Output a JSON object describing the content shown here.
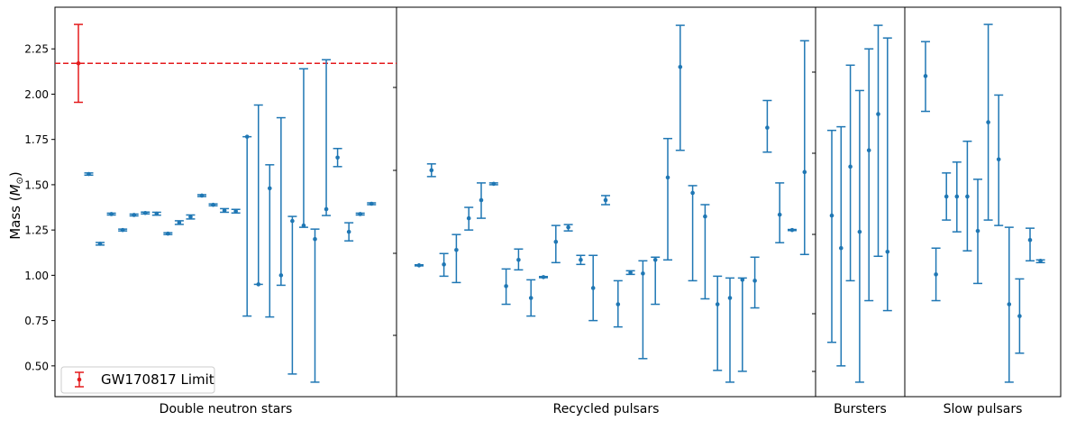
{
  "chart_data": {
    "type": "scatter",
    "ylabel": "Mass ($M_\\odot$)",
    "ylabel_plain": "Mass (",
    "ylabel_symbol": "M",
    "ylabel_sub": "⊙",
    "ylabel_close": ")",
    "ylim": [
      0.33,
      2.48
    ],
    "yticks": [
      "0.50",
      "0.75",
      "1.00",
      "1.25",
      "1.50",
      "1.75",
      "2.00",
      "2.25"
    ],
    "series_color": "#1f77b4",
    "limit_color": "#e41a1c",
    "limit": {
      "name": "GW170817 Limit",
      "value": 2.17,
      "lower": 1.955,
      "upper": 2.385
    },
    "panels": [
      {
        "label": "Double neutron stars",
        "points": [
          {
            "y": 1.559,
            "lo": 1.553,
            "hi": 1.565
          },
          {
            "y": 1.174,
            "lo": 1.167,
            "hi": 1.181
          },
          {
            "y": 1.338,
            "lo": 1.333,
            "hi": 1.343
          },
          {
            "y": 1.25,
            "lo": 1.245,
            "hi": 1.255
          },
          {
            "y": 1.333,
            "lo": 1.328,
            "hi": 1.338
          },
          {
            "y": 1.344,
            "lo": 1.339,
            "hi": 1.349
          },
          {
            "y": 1.34,
            "lo": 1.332,
            "hi": 1.348
          },
          {
            "y": 1.23,
            "lo": 1.225,
            "hi": 1.235
          },
          {
            "y": 1.291,
            "lo": 1.281,
            "hi": 1.301
          },
          {
            "y": 1.322,
            "lo": 1.311,
            "hi": 1.333
          },
          {
            "y": 1.44,
            "lo": 1.435,
            "hi": 1.445
          },
          {
            "y": 1.389,
            "lo": 1.384,
            "hi": 1.394
          },
          {
            "y": 1.358,
            "lo": 1.348,
            "hi": 1.368
          },
          {
            "y": 1.354,
            "lo": 1.344,
            "hi": 1.364
          },
          {
            "y": 1.765,
            "lo": 0.775,
            "hi": 1.765
          },
          {
            "y": 0.95,
            "lo": 0.95,
            "hi": 1.94
          },
          {
            "y": 1.48,
            "lo": 0.77,
            "hi": 1.61
          },
          {
            "y": 1.0,
            "lo": 0.945,
            "hi": 1.87
          },
          {
            "y": 1.3,
            "lo": 0.455,
            "hi": 1.325
          },
          {
            "y": 1.275,
            "lo": 1.265,
            "hi": 2.14
          },
          {
            "y": 1.2,
            "lo": 0.41,
            "hi": 1.255
          },
          {
            "y": 1.365,
            "lo": 1.33,
            "hi": 2.19
          },
          {
            "y": 1.65,
            "lo": 1.6,
            "hi": 1.7
          },
          {
            "y": 1.24,
            "lo": 1.19,
            "hi": 1.29
          },
          {
            "y": 1.338,
            "lo": 1.333,
            "hi": 1.343
          },
          {
            "y": 1.395,
            "lo": 1.39,
            "hi": 1.4
          }
        ]
      },
      {
        "label": "Recycled pulsars",
        "points": [
          {
            "y": 1.055,
            "lo": 1.052,
            "hi": 1.058
          },
          {
            "y": 1.58,
            "lo": 1.545,
            "hi": 1.615
          },
          {
            "y": 1.06,
            "lo": 0.995,
            "hi": 1.12
          },
          {
            "y": 1.14,
            "lo": 0.96,
            "hi": 1.225
          },
          {
            "y": 1.315,
            "lo": 1.25,
            "hi": 1.375
          },
          {
            "y": 1.415,
            "lo": 1.315,
            "hi": 1.51
          },
          {
            "y": 1.505,
            "lo": 1.5,
            "hi": 1.51
          },
          {
            "y": 0.94,
            "lo": 0.84,
            "hi": 1.035
          },
          {
            "y": 1.085,
            "lo": 1.03,
            "hi": 1.145
          },
          {
            "y": 0.875,
            "lo": 0.775,
            "hi": 0.975
          },
          {
            "y": 0.99,
            "lo": 0.987,
            "hi": 0.993
          },
          {
            "y": 1.185,
            "lo": 1.07,
            "hi": 1.275
          },
          {
            "y": 1.265,
            "lo": 1.245,
            "hi": 1.28
          },
          {
            "y": 1.085,
            "lo": 1.06,
            "hi": 1.11
          },
          {
            "y": 0.93,
            "lo": 0.75,
            "hi": 1.11
          },
          {
            "y": 1.415,
            "lo": 1.39,
            "hi": 1.44
          },
          {
            "y": 0.84,
            "lo": 0.715,
            "hi": 0.97
          },
          {
            "y": 1.015,
            "lo": 1.005,
            "hi": 1.025
          },
          {
            "y": 1.01,
            "lo": 0.54,
            "hi": 1.08
          },
          {
            "y": 1.085,
            "lo": 0.84,
            "hi": 1.1
          },
          {
            "y": 1.54,
            "lo": 1.085,
            "hi": 1.755
          },
          {
            "y": 2.15,
            "lo": 1.69,
            "hi": 2.38
          },
          {
            "y": 1.455,
            "lo": 0.97,
            "hi": 1.495
          },
          {
            "y": 1.325,
            "lo": 0.87,
            "hi": 1.39
          },
          {
            "y": 0.84,
            "lo": 0.475,
            "hi": 0.995
          },
          {
            "y": 0.875,
            "lo": 0.41,
            "hi": 0.985
          },
          {
            "y": 0.975,
            "lo": 0.47,
            "hi": 0.985
          },
          {
            "y": 0.97,
            "lo": 0.82,
            "hi": 1.1
          },
          {
            "y": 1.815,
            "lo": 1.68,
            "hi": 1.965
          },
          {
            "y": 1.335,
            "lo": 1.18,
            "hi": 1.51
          },
          {
            "y": 1.25,
            "lo": 1.247,
            "hi": 1.253
          },
          {
            "y": 1.57,
            "lo": 1.115,
            "hi": 2.295
          }
        ]
      },
      {
        "label": "Bursters",
        "points": [
          {
            "y": 1.33,
            "lo": 0.63,
            "hi": 1.8
          },
          {
            "y": 1.15,
            "lo": 0.5,
            "hi": 1.82
          },
          {
            "y": 1.6,
            "lo": 0.97,
            "hi": 2.16
          },
          {
            "y": 1.24,
            "lo": 0.41,
            "hi": 2.02
          },
          {
            "y": 1.69,
            "lo": 0.86,
            "hi": 2.25
          },
          {
            "y": 1.89,
            "lo": 1.105,
            "hi": 2.38
          },
          {
            "y": 1.13,
            "lo": 0.805,
            "hi": 2.31
          }
        ]
      },
      {
        "label": "Slow pulsars",
        "points": [
          {
            "y": 2.1,
            "lo": 1.905,
            "hi": 2.29
          },
          {
            "y": 1.005,
            "lo": 0.86,
            "hi": 1.15
          },
          {
            "y": 1.435,
            "lo": 1.305,
            "hi": 1.565
          },
          {
            "y": 1.435,
            "lo": 1.24,
            "hi": 1.625
          },
          {
            "y": 1.435,
            "lo": 1.135,
            "hi": 1.74
          },
          {
            "y": 1.245,
            "lo": 0.955,
            "hi": 1.53
          },
          {
            "y": 1.845,
            "lo": 1.305,
            "hi": 2.385
          },
          {
            "y": 1.64,
            "lo": 1.275,
            "hi": 1.995
          },
          {
            "y": 0.84,
            "lo": 0.41,
            "hi": 1.265
          },
          {
            "y": 0.775,
            "lo": 0.57,
            "hi": 0.98
          },
          {
            "y": 1.195,
            "lo": 1.08,
            "hi": 1.26
          },
          {
            "y": 1.08,
            "lo": 1.07,
            "hi": 1.085
          }
        ]
      }
    ]
  }
}
